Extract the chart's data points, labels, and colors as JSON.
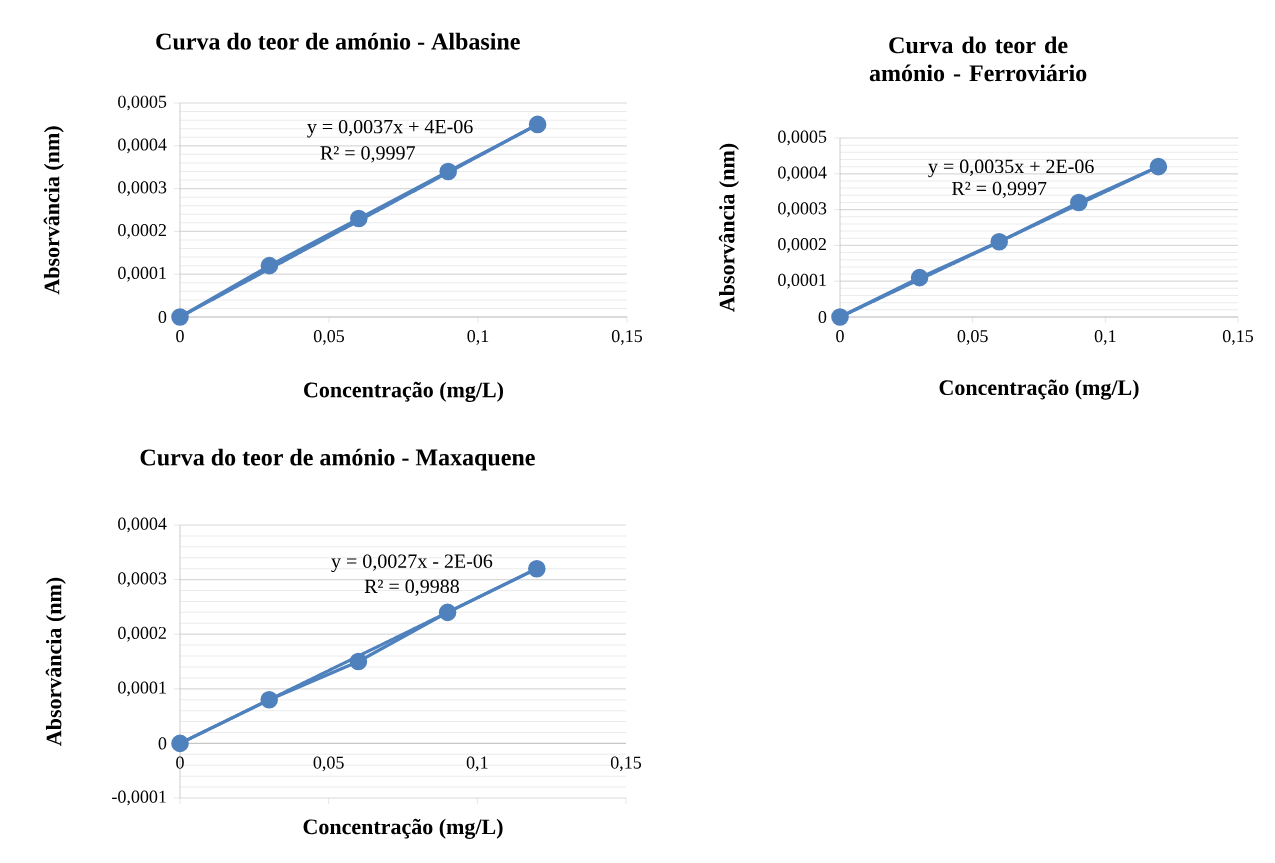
{
  "chart_data": [
    {
      "type": "line",
      "title": "Curva do teor de amónio - Albasine",
      "xlabel": "Concentração (mg/L)",
      "ylabel": "Absorvância (nm)",
      "xlim": [
        0,
        0.15
      ],
      "xticks": [
        0,
        {
          "value": 0.05,
          "label": "0,05"
        },
        {
          "value": 0.1,
          "label": "0,1"
        },
        {
          "value": 0.15,
          "label": "0,15"
        }
      ],
      "ylim": [
        0,
        0.0005
      ],
      "yticks": [
        0,
        {
          "value": 0.0001,
          "label": "0,0001"
        },
        {
          "value": 0.0002,
          "label": "0,0002"
        },
        {
          "value": 0.0003,
          "label": "0,0003"
        },
        {
          "value": 0.0004,
          "label": "0,0004"
        },
        {
          "value": 0.0005,
          "label": "0,0005"
        }
      ],
      "grid": "y",
      "series": [
        {
          "color": "#4f81bd",
          "marker": "circle",
          "x": [
            0,
            0.03,
            0.06,
            0.09,
            0.12
          ],
          "values": [
            0,
            0.00012,
            0.00023,
            0.00034,
            0.00045
          ]
        },
        {
          "color": "#4f81bd",
          "marker": "none",
          "line_style": "dotted",
          "x": [
            0,
            0.12
          ],
          "values": [
            0,
            0.00045
          ]
        }
      ],
      "annotations": [
        "y = 0,0037x + 4E-06",
        "R² = 0,9997"
      ]
    },
    {
      "type": "line",
      "title": "Curva do teor de amónio - Ferroviário",
      "xlabel": "Concentração (mg/L)",
      "ylabel": "Absorvância (nm)",
      "xlim": [
        0,
        0.15
      ],
      "xticks": [
        0,
        {
          "value": 0.05,
          "label": "0,05"
        },
        {
          "value": 0.1,
          "label": "0,1"
        },
        {
          "value": 0.15,
          "label": "0,15"
        }
      ],
      "ylim": [
        0,
        0.0005
      ],
      "yticks": [
        0,
        {
          "value": 0.0001,
          "label": "0,0001"
        },
        {
          "value": 0.0002,
          "label": "0,0002"
        },
        {
          "value": 0.0003,
          "label": "0,0003"
        },
        {
          "value": 0.0004,
          "label": "0,0004"
        },
        {
          "value": 0.0005,
          "label": "0,0005"
        }
      ],
      "grid": "y",
      "series": [
        {
          "color": "#4f81bd",
          "marker": "circle",
          "x": [
            0,
            0.03,
            0.06,
            0.09,
            0.12
          ],
          "values": [
            0,
            0.00011,
            0.00021,
            0.00032,
            0.00042
          ]
        },
        {
          "color": "#4f81bd",
          "marker": "none",
          "line_style": "dotted",
          "x": [
            0,
            0.12
          ],
          "values": [
            0,
            0.00042
          ]
        }
      ],
      "annotations": [
        "y = 0,0035x + 2E-06",
        "R² = 0,9997"
      ]
    },
    {
      "type": "line",
      "title": "Curva do teor de amónio - Maxaquene",
      "xlabel": "Concentração (mg/L)",
      "ylabel": "Absorvância (nm)",
      "xlim": [
        0,
        0.15
      ],
      "xticks": [
        0,
        {
          "value": 0.05,
          "label": "0,05"
        },
        {
          "value": 0.1,
          "label": "0,1"
        },
        {
          "value": 0.15,
          "label": "0,15"
        }
      ],
      "ylim": [
        -0.0001,
        0.0004
      ],
      "yticks": [
        {
          "value": -0.0001,
          "label": "-0,0001"
        },
        0,
        {
          "value": 0.0001,
          "label": "0,0001"
        },
        {
          "value": 0.0002,
          "label": "0,0002"
        },
        {
          "value": 0.0003,
          "label": "0,0003"
        },
        {
          "value": 0.0004,
          "label": "0,0004"
        }
      ],
      "grid": "y",
      "series": [
        {
          "color": "#4f81bd",
          "marker": "circle",
          "x": [
            0,
            0.03,
            0.06,
            0.09,
            0.12
          ],
          "values": [
            0,
            8e-05,
            0.00015,
            0.00024,
            0.00032
          ]
        },
        {
          "color": "#4f81bd",
          "marker": "none",
          "line_style": "dotted",
          "x": [
            0,
            0.12
          ],
          "values": [
            0,
            0.00032
          ]
        }
      ],
      "annotations": [
        "y = 0,0027x - 2E-06",
        "R² = 0,9988"
      ]
    }
  ]
}
